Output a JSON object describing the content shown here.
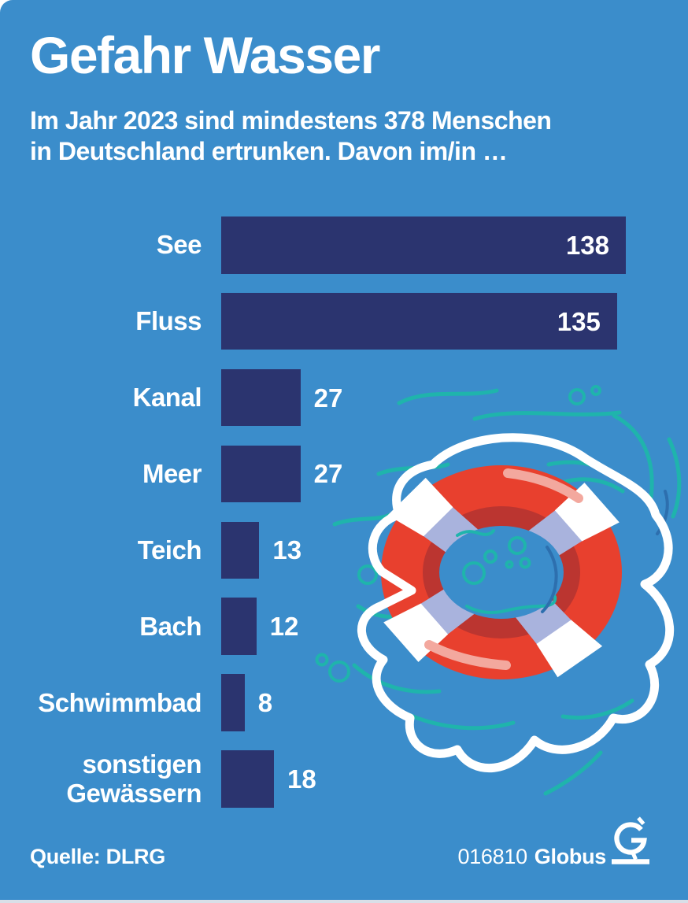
{
  "header": {
    "title": "Gefahr Wasser",
    "subtitle": [
      "Im Jahr 2023 sind mindestens 378 Menschen",
      "in Deutschland ertrunken. Davon im/in …"
    ]
  },
  "chart_data": {
    "type": "bar",
    "orientation": "horizontal",
    "categories": [
      "See",
      "Fluss",
      "Kanal",
      "Meer",
      "Teich",
      "Bach",
      "Schwimmbad",
      "sonstigen Gewässern"
    ],
    "values": [
      138,
      135,
      27,
      27,
      13,
      12,
      8,
      18
    ],
    "title": "Gefahr Wasser",
    "xlabel": "",
    "ylabel": "",
    "xlim": [
      0,
      138
    ],
    "value_labels": "shown at bar end, inside bar when value >= inside_label_min",
    "inside_label_min": 100,
    "grid": false,
    "legend": false
  },
  "footer": {
    "source": "Quelle: DLRG",
    "credit_number": "016810",
    "credit_brand": "Globus"
  },
  "illustration": {
    "name": "red-white lifebuoy floating in water with teal ripples and bubbles"
  },
  "colors": {
    "page": "#ffffff",
    "bg": "#3b8dcb",
    "bar": "#2b346f",
    "text": "#ffffff",
    "red": "#e8402e",
    "darkred": "#bb3530",
    "periwinkle": "#a9b3dd",
    "pink": "#f3a89e",
    "teal": "#1fb4ac",
    "darkblue": "#2d6fae",
    "strip": "#d9dfe8"
  }
}
